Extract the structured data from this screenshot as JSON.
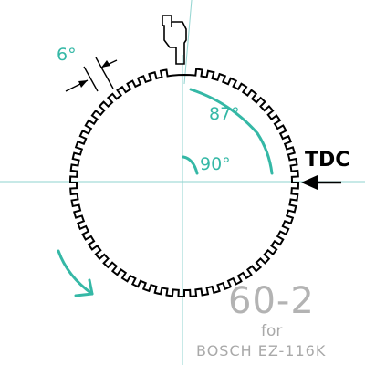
{
  "diagram": {
    "tdc_label": "TDC",
    "tooth_pitch_label": "6°",
    "sensor_angle_label": "87°",
    "quadrant_angle_label": "90°",
    "wheel_type_label": "60-2",
    "for_label": "for",
    "application_label": "BOSCH EZ-116K",
    "colors": {
      "annotation": "#35b8a6",
      "guides": "#8fd3cf",
      "wheel": "#000000",
      "footnote": "#a9a9a9"
    },
    "icons": [
      "sensor-icon",
      "rotation-arrow-icon",
      "tdc-arrow-icon"
    ]
  }
}
